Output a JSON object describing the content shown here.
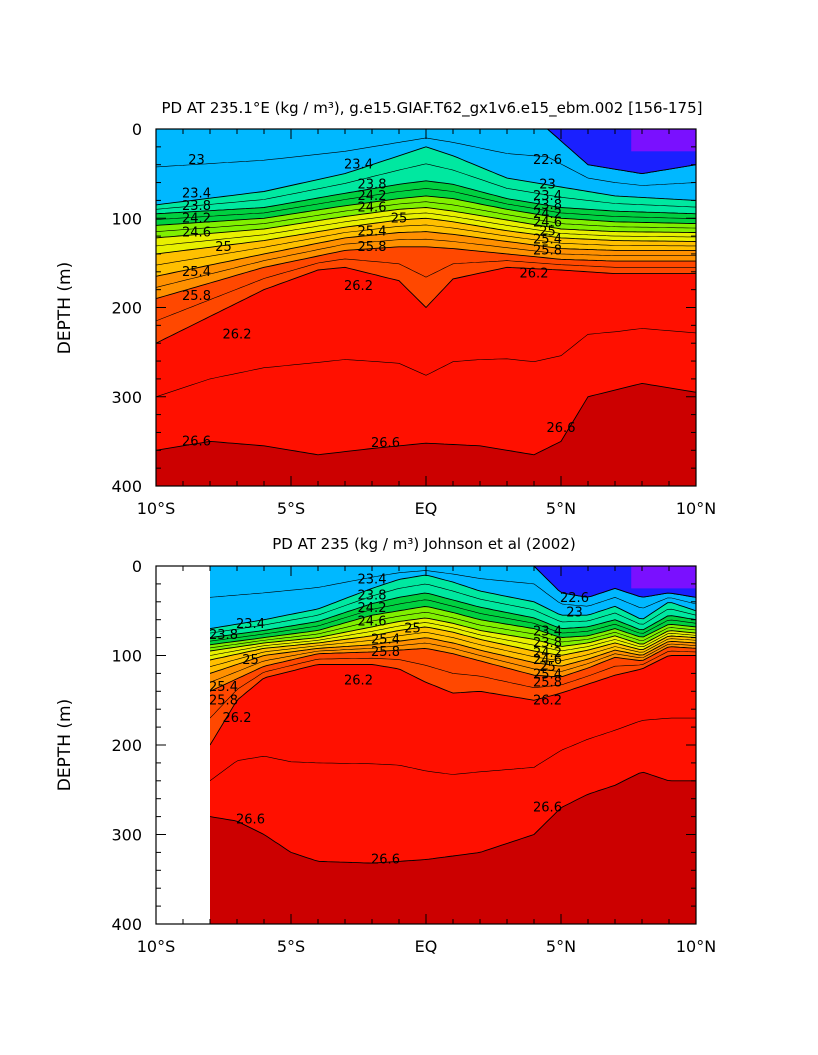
{
  "chart_data": [
    {
      "type": "contour",
      "title": "PD AT 235.1°E (kg / m³), g.e15.GIAF.T62_gx1v6.e15_ebm.002 [156-175]",
      "xlabel": "",
      "ylabel": "DEPTH (m)",
      "x_ticks": [
        "10°S",
        "5°S",
        "EQ",
        "5°N",
        "10°N"
      ],
      "x_tick_values": [
        -10,
        -5,
        0,
        5,
        10
      ],
      "y_ticks": [
        "0",
        "100",
        "200",
        "300",
        "400"
      ],
      "y_tick_values": [
        0,
        100,
        200,
        300,
        400
      ],
      "xlim": [
        -10,
        10
      ],
      "ylim": [
        400,
        0
      ],
      "data_xlim": [
        -10,
        10
      ],
      "levels": [
        22.6,
        23.4,
        23.8,
        24.2,
        24.6,
        25,
        25.4,
        25.8,
        26.2,
        26.6
      ],
      "contours": [
        {
          "level": 22.6,
          "x": [
            4.5,
            6,
            8,
            10
          ],
          "depth": [
            0,
            40,
            50,
            40
          ]
        },
        {
          "level": 23.4,
          "x": [
            -10,
            -6,
            -3,
            -1,
            0,
            1,
            3,
            5,
            7,
            10
          ],
          "depth": [
            85,
            70,
            50,
            30,
            20,
            30,
            55,
            65,
            75,
            80
          ]
        },
        {
          "level": 23.8,
          "x": [
            -10,
            -6,
            -3,
            -1,
            0,
            1,
            3,
            5,
            7,
            10
          ],
          "depth": [
            95,
            88,
            72,
            62,
            58,
            62,
            78,
            88,
            92,
            95
          ]
        },
        {
          "level": 24.2,
          "x": [
            -10,
            -6,
            -3,
            -1,
            0,
            1,
            3,
            5,
            7,
            10
          ],
          "depth": [
            108,
            100,
            86,
            78,
            75,
            78,
            90,
            100,
            104,
            106
          ]
        },
        {
          "level": 24.6,
          "x": [
            -10,
            -6,
            -3,
            -1,
            0,
            1,
            3,
            5,
            7,
            10
          ],
          "depth": [
            122,
            112,
            98,
            90,
            88,
            92,
            102,
            112,
            115,
            116
          ]
        },
        {
          "level": 25,
          "x": [
            -10,
            -6,
            -3,
            -1,
            0,
            1,
            3,
            5,
            7,
            10
          ],
          "depth": [
            140,
            125,
            110,
            102,
            100,
            104,
            114,
            122,
            125,
            126
          ]
        },
        {
          "level": 25.4,
          "x": [
            -10,
            -6,
            -3,
            -1,
            0,
            1,
            3,
            5,
            7,
            10
          ],
          "depth": [
            165,
            140,
            122,
            116,
            115,
            118,
            126,
            134,
            136,
            136
          ]
        },
        {
          "level": 25.8,
          "x": [
            -10,
            -6,
            -3,
            -1,
            0,
            1,
            3,
            5,
            7,
            10
          ],
          "depth": [
            190,
            155,
            136,
            132,
            132,
            134,
            140,
            146,
            148,
            148
          ]
        },
        {
          "level": 26.2,
          "x": [
            -10,
            -8,
            -6,
            -4,
            -3,
            -1,
            0,
            1,
            3,
            5,
            7,
            10
          ],
          "depth": [
            240,
            210,
            180,
            158,
            155,
            170,
            200,
            168,
            155,
            158,
            162,
            162
          ]
        },
        {
          "level": 26.6,
          "x": [
            -10,
            -8,
            -6,
            -4,
            -2,
            0,
            2,
            4,
            5,
            6,
            8,
            10
          ],
          "depth": [
            360,
            350,
            355,
            365,
            358,
            352,
            355,
            365,
            350,
            300,
            285,
            295
          ]
        }
      ],
      "contour_labels": [
        {
          "text": "23",
          "x": -8.5,
          "depth": 35
        },
        {
          "text": "23.4",
          "x": -8.5,
          "depth": 72
        },
        {
          "text": "23.8",
          "x": -8.5,
          "depth": 86
        },
        {
          "text": "24.2",
          "x": -8.5,
          "depth": 100
        },
        {
          "text": "24.6",
          "x": -8.5,
          "depth": 116
        },
        {
          "text": "25",
          "x": -7.5,
          "depth": 132
        },
        {
          "text": "25.4",
          "x": -8.5,
          "depth": 160
        },
        {
          "text": "25.8",
          "x": -8.5,
          "depth": 187
        },
        {
          "text": "26.2",
          "x": -7.0,
          "depth": 230
        },
        {
          "text": "26.6",
          "x": -8.5,
          "depth": 350
        },
        {
          "text": "23.4",
          "x": -2.5,
          "depth": 40
        },
        {
          "text": "23.8",
          "x": -2.0,
          "depth": 62
        },
        {
          "text": "24.2",
          "x": -2.0,
          "depth": 75
        },
        {
          "text": "24.6",
          "x": -2.0,
          "depth": 88
        },
        {
          "text": "25",
          "x": -1.0,
          "depth": 100
        },
        {
          "text": "25.4",
          "x": -2.0,
          "depth": 115
        },
        {
          "text": "25.8",
          "x": -2.0,
          "depth": 132
        },
        {
          "text": "26.2",
          "x": -2.5,
          "depth": 176
        },
        {
          "text": "26.6",
          "x": -1.5,
          "depth": 352
        },
        {
          "text": "22.6",
          "x": 4.5,
          "depth": 35
        },
        {
          "text": "23",
          "x": 4.5,
          "depth": 62
        },
        {
          "text": "23.4",
          "x": 4.5,
          "depth": 75
        },
        {
          "text": "23.8",
          "x": 4.5,
          "depth": 85
        },
        {
          "text": "24.2",
          "x": 4.5,
          "depth": 95
        },
        {
          "text": "24.6",
          "x": 4.5,
          "depth": 105
        },
        {
          "text": "25",
          "x": 4.5,
          "depth": 115
        },
        {
          "text": "25.4",
          "x": 4.5,
          "depth": 124
        },
        {
          "text": "25.8",
          "x": 4.5,
          "depth": 136
        },
        {
          "text": "26.2",
          "x": 4.0,
          "depth": 162
        },
        {
          "text": "26.6",
          "x": 5.0,
          "depth": 335
        }
      ]
    },
    {
      "type": "contour",
      "title": "PD AT 235 (kg / m³) Johnson et al (2002)",
      "xlabel": "",
      "ylabel": "DEPTH (m)",
      "x_ticks": [
        "10°S",
        "5°S",
        "EQ",
        "5°N",
        "10°N"
      ],
      "x_tick_values": [
        -10,
        -5,
        0,
        5,
        10
      ],
      "y_ticks": [
        "0",
        "100",
        "200",
        "300",
        "400"
      ],
      "y_tick_values": [
        0,
        100,
        200,
        300,
        400
      ],
      "xlim": [
        -10,
        10
      ],
      "ylim": [
        400,
        0
      ],
      "data_xlim": [
        -8,
        10
      ],
      "levels": [
        22.6,
        23.4,
        23.8,
        24.2,
        24.6,
        25,
        25.4,
        25.8,
        26.2,
        26.6
      ],
      "contours": [
        {
          "level": 22.6,
          "x": [
            4.0,
            5,
            6,
            7,
            8,
            9,
            10
          ],
          "depth": [
            0,
            30,
            35,
            25,
            35,
            30,
            35
          ]
        },
        {
          "level": 23.4,
          "x": [
            -8,
            -6,
            -4,
            -2,
            -1,
            0,
            1,
            2,
            4,
            5,
            6,
            7,
            8,
            9,
            10
          ],
          "depth": [
            70,
            60,
            48,
            25,
            15,
            10,
            18,
            28,
            40,
            55,
            55,
            45,
            60,
            40,
            50
          ]
        },
        {
          "level": 23.8,
          "x": [
            -8,
            -6,
            -4,
            -2,
            -1,
            0,
            1,
            2,
            4,
            5,
            6,
            7,
            8,
            9,
            10
          ],
          "depth": [
            80,
            72,
            62,
            42,
            35,
            30,
            38,
            46,
            58,
            70,
            68,
            60,
            72,
            55,
            60
          ]
        },
        {
          "level": 24.2,
          "x": [
            -8,
            -6,
            -4,
            -2,
            -1,
            0,
            1,
            2,
            4,
            5,
            6,
            7,
            8,
            9,
            10
          ],
          "depth": [
            88,
            80,
            72,
            55,
            50,
            45,
            52,
            60,
            70,
            80,
            78,
            70,
            80,
            65,
            68
          ]
        },
        {
          "level": 24.6,
          "x": [
            -8,
            -6,
            -4,
            -2,
            -1,
            0,
            1,
            2,
            4,
            5,
            6,
            7,
            8,
            9,
            10
          ],
          "depth": [
            95,
            86,
            80,
            68,
            62,
            58,
            64,
            72,
            82,
            90,
            86,
            78,
            88,
            72,
            75
          ]
        },
        {
          "level": 25,
          "x": [
            -8,
            -6,
            -4,
            -2,
            -1,
            0,
            1,
            2,
            4,
            5,
            6,
            7,
            8,
            9,
            10
          ],
          "depth": [
            105,
            92,
            86,
            78,
            72,
            68,
            74,
            82,
            95,
            100,
            94,
            86,
            94,
            78,
            80
          ]
        },
        {
          "level": 25.4,
          "x": [
            -8,
            -6,
            -4,
            -2,
            -1,
            0,
            1,
            2,
            4,
            5,
            6,
            7,
            8,
            9,
            10
          ],
          "depth": [
            120,
            100,
            92,
            88,
            84,
            80,
            86,
            94,
            108,
            112,
            104,
            94,
            100,
            84,
            86
          ]
        },
        {
          "level": 25.8,
          "x": [
            -8,
            -6,
            -4,
            -2,
            -1,
            0,
            1,
            2,
            4,
            5,
            6,
            7,
            8,
            9,
            10
          ],
          "depth": [
            140,
            112,
            98,
            96,
            94,
            92,
            98,
            106,
            122,
            124,
            114,
            102,
            106,
            90,
            92
          ]
        },
        {
          "level": 26.2,
          "x": [
            -8,
            -7,
            -6,
            -4,
            -2,
            -1,
            0,
            1,
            2,
            4,
            5,
            6,
            7,
            8,
            9,
            10
          ],
          "depth": [
            200,
            150,
            125,
            110,
            110,
            115,
            130,
            142,
            140,
            150,
            142,
            132,
            122,
            115,
            100,
            100
          ]
        },
        {
          "level": 26.6,
          "x": [
            -8,
            -7,
            -6,
            -5,
            -4,
            -2,
            0,
            2,
            4,
            5,
            6,
            7,
            8,
            9,
            10
          ],
          "depth": [
            280,
            285,
            300,
            320,
            330,
            332,
            328,
            320,
            300,
            270,
            255,
            245,
            230,
            240,
            240
          ]
        }
      ],
      "contour_labels": [
        {
          "text": "23.4",
          "x": -6.5,
          "depth": 65
        },
        {
          "text": "23.8",
          "x": -7.5,
          "depth": 77
        },
        {
          "text": "25",
          "x": -6.5,
          "depth": 105
        },
        {
          "text": "25.4",
          "x": -7.5,
          "depth": 135
        },
        {
          "text": "25.8",
          "x": -7.5,
          "depth": 150
        },
        {
          "text": "26.2",
          "x": -7.0,
          "depth": 170
        },
        {
          "text": "26.6",
          "x": -6.5,
          "depth": 283
        },
        {
          "text": "23.4",
          "x": -2.0,
          "depth": 15
        },
        {
          "text": "23.8",
          "x": -2.0,
          "depth": 33
        },
        {
          "text": "24.2",
          "x": -2.0,
          "depth": 47
        },
        {
          "text": "24.6",
          "x": -2.0,
          "depth": 62
        },
        {
          "text": "25",
          "x": -0.5,
          "depth": 70
        },
        {
          "text": "25.4",
          "x": -1.5,
          "depth": 82
        },
        {
          "text": "25.8",
          "x": -1.5,
          "depth": 96
        },
        {
          "text": "26.2",
          "x": -2.5,
          "depth": 128
        },
        {
          "text": "26.6",
          "x": -1.5,
          "depth": 328
        },
        {
          "text": "22.6",
          "x": 5.5,
          "depth": 36
        },
        {
          "text": "23",
          "x": 5.5,
          "depth": 52
        },
        {
          "text": "23.4",
          "x": 4.5,
          "depth": 73
        },
        {
          "text": "23.8",
          "x": 4.5,
          "depth": 86
        },
        {
          "text": "24.2",
          "x": 4.5,
          "depth": 97
        },
        {
          "text": "24.6",
          "x": 4.5,
          "depth": 105
        },
        {
          "text": "25",
          "x": 4.5,
          "depth": 113
        },
        {
          "text": "25.4",
          "x": 4.5,
          "depth": 121
        },
        {
          "text": "25.8",
          "x": 4.5,
          "depth": 130
        },
        {
          "text": "26.2",
          "x": 4.5,
          "depth": 150
        },
        {
          "text": "26.6",
          "x": 4.5,
          "depth": 270
        }
      ]
    }
  ],
  "palette": {
    "bands": [
      "#9a00e0",
      "#2a00ff",
      "#0040ff",
      "#0088ff",
      "#00c8ff",
      "#00e0ff",
      "#00f0c0",
      "#00e060",
      "#60ff00",
      "#d8ff00",
      "#ffe000",
      "#ffb000",
      "#ff8000",
      "#ff4500",
      "#ff0000",
      "#cc0000"
    ],
    "contour_line": "#000000",
    "magenta_top": "#d000ff"
  }
}
